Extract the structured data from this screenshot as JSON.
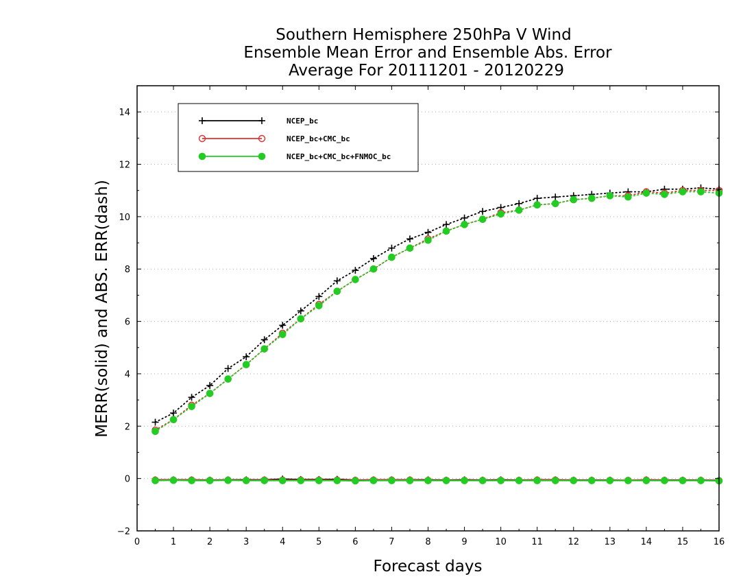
{
  "chart_data": {
    "type": "line",
    "title": [
      "Southern Hemisphere 250hPa V Wind",
      "Ensemble Mean Error and Ensemble Abs. Error",
      "Average For 20111201 - 20120229"
    ],
    "xlabel": "Forecast days",
    "ylabel": "MERR(solid) and ABS. ERR(dash)",
    "xlim": [
      0,
      16
    ],
    "ylim": [
      -2,
      15
    ],
    "xticks": [
      0,
      1,
      2,
      3,
      4,
      5,
      6,
      7,
      8,
      9,
      10,
      11,
      12,
      13,
      14,
      15,
      16
    ],
    "yticks": [
      -2,
      0,
      2,
      4,
      6,
      8,
      10,
      12,
      14
    ],
    "grid": "horizontal dotted",
    "legend_position": "top-left",
    "x": [
      0.5,
      1,
      1.5,
      2,
      2.5,
      3,
      3.5,
      4,
      4.5,
      5,
      5.5,
      6,
      6.5,
      7,
      7.5,
      8,
      8.5,
      9,
      9.5,
      10,
      10.5,
      11,
      11.5,
      12,
      12.5,
      13,
      13.5,
      14,
      14.5,
      15,
      15.5,
      16
    ],
    "series": [
      {
        "name": "NCEP_bc",
        "color": "#000000",
        "marker": "plus",
        "abs_err": [
          2.15,
          2.5,
          3.1,
          3.55,
          4.2,
          4.65,
          5.3,
          5.85,
          6.4,
          6.95,
          7.55,
          7.95,
          8.4,
          8.8,
          9.15,
          9.4,
          9.7,
          9.95,
          10.2,
          10.35,
          10.5,
          10.7,
          10.75,
          10.8,
          10.85,
          10.9,
          10.95,
          10.95,
          11.05,
          11.05,
          11.1,
          11.05
        ],
        "mean_err": [
          -0.05,
          -0.05,
          -0.05,
          -0.06,
          -0.05,
          -0.05,
          -0.05,
          -0.02,
          -0.04,
          -0.04,
          -0.03,
          -0.06,
          -0.05,
          -0.05,
          -0.05,
          -0.05,
          -0.06,
          -0.05,
          -0.06,
          -0.05,
          -0.06,
          -0.05,
          -0.05,
          -0.06,
          -0.06,
          -0.06,
          -0.07,
          -0.05,
          -0.06,
          -0.06,
          -0.06,
          -0.07
        ]
      },
      {
        "name": "NCEP_bc+CMC_bc",
        "color": "#e03030",
        "marker": "open-circle",
        "abs_err": [
          1.85,
          2.25,
          2.8,
          3.25,
          3.8,
          4.35,
          4.95,
          5.55,
          6.1,
          6.65,
          7.15,
          7.6,
          8.0,
          8.45,
          8.8,
          9.15,
          9.45,
          9.7,
          9.9,
          10.15,
          10.25,
          10.45,
          10.5,
          10.65,
          10.7,
          10.8,
          10.8,
          10.95,
          10.9,
          11.0,
          11.0,
          11.0
        ],
        "mean_err": [
          -0.06,
          -0.06,
          -0.06,
          -0.07,
          -0.06,
          -0.07,
          -0.06,
          -0.06,
          -0.06,
          -0.06,
          -0.06,
          -0.07,
          -0.06,
          -0.06,
          -0.06,
          -0.07,
          -0.07,
          -0.07,
          -0.07,
          -0.07,
          -0.07,
          -0.06,
          -0.06,
          -0.07,
          -0.07,
          -0.07,
          -0.07,
          -0.06,
          -0.07,
          -0.07,
          -0.07,
          -0.08
        ]
      },
      {
        "name": "NCEP_bc+CMC_bc+FNMOC_bc",
        "color": "#22cc22",
        "marker": "filled-circle",
        "abs_err": [
          1.8,
          2.25,
          2.75,
          3.25,
          3.8,
          4.35,
          4.95,
          5.5,
          6.1,
          6.6,
          7.15,
          7.6,
          8.0,
          8.45,
          8.8,
          9.1,
          9.45,
          9.7,
          9.9,
          10.1,
          10.25,
          10.45,
          10.5,
          10.65,
          10.7,
          10.8,
          10.75,
          10.9,
          10.85,
          10.95,
          10.95,
          10.9
        ],
        "mean_err": [
          -0.08,
          -0.07,
          -0.08,
          -0.08,
          -0.07,
          -0.08,
          -0.08,
          -0.08,
          -0.08,
          -0.08,
          -0.08,
          -0.09,
          -0.08,
          -0.08,
          -0.08,
          -0.08,
          -0.08,
          -0.08,
          -0.08,
          -0.08,
          -0.08,
          -0.08,
          -0.08,
          -0.08,
          -0.08,
          -0.08,
          -0.08,
          -0.08,
          -0.08,
          -0.08,
          -0.08,
          -0.09
        ]
      }
    ]
  }
}
